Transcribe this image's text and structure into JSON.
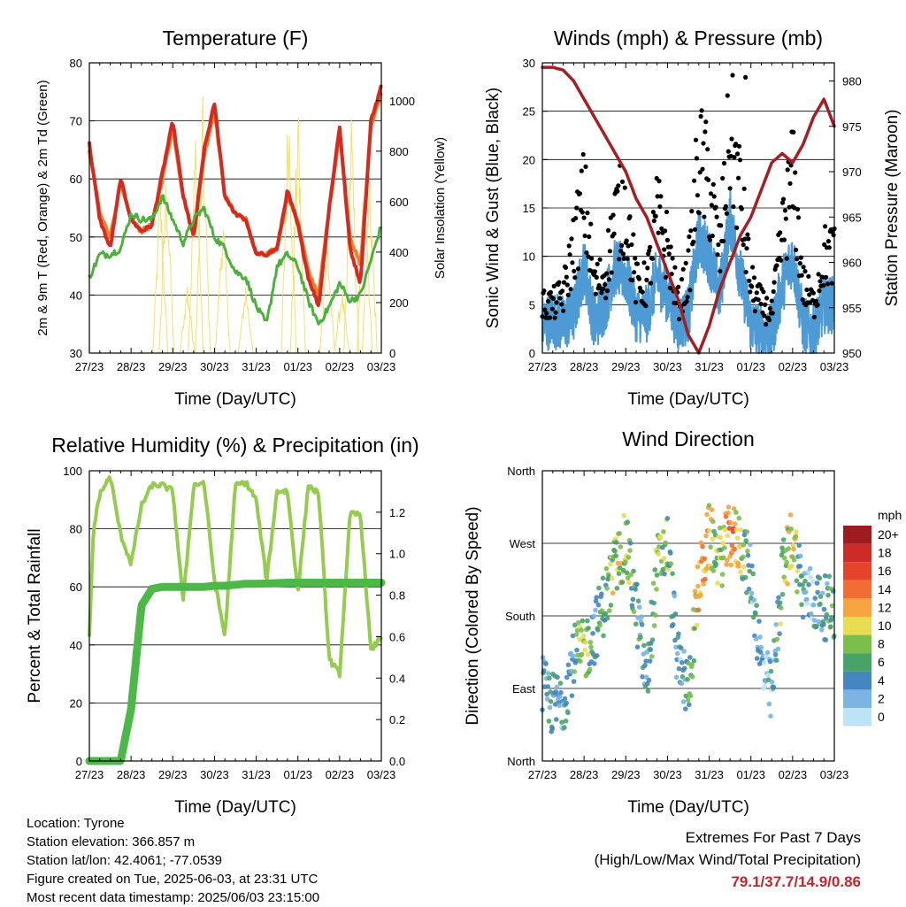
{
  "x_ticks": [
    "27/23",
    "28/23",
    "29/23",
    "30/23",
    "31/23",
    "01/23",
    "02/23",
    "03/23"
  ],
  "x_label": "Time (Day/UTC)",
  "colors": {
    "t2m": "#d42a20",
    "t9m": "#f07e2e",
    "td": "#4daf3c",
    "solar": "#f3e06a",
    "gust": "#000000",
    "wind": "#4d9ad4",
    "pressure": "#a31f24",
    "rh": "#95cc4f",
    "precip": "#4cb848",
    "grid": "#000000"
  },
  "info": {
    "location": "Location: Tyrone",
    "elevation": "Station elevation: 366.857 m",
    "latlon": "Station lat/lon: 42.4061; -77.0539",
    "created": "Figure created on Tue, 2025-06-03, at 23:31 UTC",
    "recent": "Most recent data timestamp: 2025/06/03 23:15:00"
  },
  "extremes": {
    "title": "Extremes For Past 7 Days",
    "subtitle": "(High/Low/Max Wind/Total Precipitation)",
    "values": "79.1/37.7/14.9/0.86"
  },
  "chart_data": [
    {
      "type": "line",
      "title": "Temperature (F)",
      "xlabel": "Time (Day/UTC)",
      "ylabel": "2m & 9m T (Red, Orange) & 2m Td (Green)",
      "ylabel_right": "Solar Insolation (Yellow)",
      "ylim": [
        30,
        80
      ],
      "y_ticks": [
        30,
        40,
        50,
        60,
        70,
        80
      ],
      "ylim_right": [
        0,
        1150
      ],
      "y_ticks_right": [
        0,
        200,
        400,
        600,
        800,
        1000
      ],
      "x": [
        0,
        0.25,
        0.5,
        0.75,
        1,
        1.25,
        1.5,
        1.75,
        2,
        2.25,
        2.5,
        2.75,
        3,
        3.25,
        3.5,
        3.75,
        4,
        4.25,
        4.5,
        4.75,
        5,
        5.25,
        5.5,
        5.75,
        6,
        6.25,
        6.5,
        6.75,
        7
      ],
      "series": [
        {
          "name": "2m T",
          "axis": "left",
          "values": [
            66,
            53,
            48,
            60,
            53,
            51,
            52,
            61,
            70,
            57,
            50,
            65,
            73,
            57,
            54,
            53,
            47,
            47,
            48,
            58,
            52,
            43,
            38,
            55,
            69,
            48,
            42,
            70,
            76
          ]
        },
        {
          "name": "9m T",
          "axis": "left",
          "values": [
            65,
            54,
            50,
            59,
            53,
            51,
            52,
            60,
            69,
            57,
            50,
            64,
            72,
            57,
            54,
            53,
            47,
            47,
            48,
            57,
            53,
            44,
            40,
            55,
            68,
            50,
            45,
            69,
            75
          ]
        },
        {
          "name": "2m Td",
          "axis": "left",
          "values": [
            43,
            47,
            47,
            48,
            54,
            53,
            53,
            57,
            53,
            49,
            53,
            55,
            50,
            48,
            44,
            43,
            38,
            35,
            45,
            47,
            45,
            39,
            35,
            38,
            42,
            39,
            40,
            46,
            52
          ]
        },
        {
          "name": "Solar Insolation",
          "axis": "right",
          "peaks_x": [
            1.7,
            1.85,
            2.35,
            2.55,
            2.72,
            3.2,
            3.75,
            4.78,
            5.0,
            5.7,
            6.05,
            6.28,
            6.6,
            6.72
          ],
          "peaks": [
            720,
            800,
            300,
            960,
            1020,
            610,
            300,
            1130,
            1050,
            510,
            280,
            1000,
            830,
            800
          ]
        }
      ]
    },
    {
      "type": "scatter",
      "title": "Winds (mph) & Pressure (mb)",
      "xlabel": "Time (Day/UTC)",
      "ylabel": "Sonic Wind & Gust (Blue, Black)",
      "ylabel_right": "Station Pressure (Maroon)",
      "ylim": [
        0,
        30
      ],
      "y_ticks": [
        0,
        5,
        10,
        15,
        20,
        25,
        30
      ],
      "ylim_right": [
        950,
        982
      ],
      "y_ticks_right": [
        950,
        955,
        960,
        965,
        970,
        975,
        980
      ],
      "x": [
        0,
        0.25,
        0.5,
        0.75,
        1,
        1.25,
        1.5,
        1.75,
        2,
        2.25,
        2.5,
        2.75,
        3,
        3.25,
        3.5,
        3.75,
        4,
        4.25,
        4.5,
        4.75,
        5,
        5.25,
        5.5,
        5.75,
        6,
        6.25,
        6.5,
        6.75,
        7
      ],
      "series": [
        {
          "name": "Wind",
          "values": [
            3,
            3.5,
            3,
            4,
            9,
            3,
            5,
            9,
            8,
            4,
            4,
            8,
            6,
            3,
            4,
            12,
            10,
            6,
            14,
            8,
            3,
            2,
            2,
            7,
            10,
            3,
            2,
            5,
            5
          ]
        },
        {
          "name": "Gust",
          "values": [
            5,
            5,
            6,
            11,
            16,
            7,
            8,
            14,
            15,
            7,
            7,
            14,
            11,
            5,
            8,
            20,
            17,
            10,
            23,
            16,
            7,
            5,
            4,
            12,
            18,
            7,
            5,
            10,
            10
          ]
        },
        {
          "name": "Pressure",
          "values": [
            981.5,
            981.5,
            981.2,
            980,
            978,
            976,
            974,
            972,
            970,
            967,
            965,
            962,
            959,
            956,
            952,
            950,
            953,
            957,
            960,
            963,
            965,
            968,
            971,
            972,
            971,
            973,
            976,
            978,
            975
          ]
        }
      ],
      "outlier": {
        "x": 4.87,
        "y": 28.5
      }
    },
    {
      "type": "line",
      "title": "Relative Humidity (%) & Precipitation (in)",
      "xlabel": "Time (Day/UTC)",
      "ylabel": "Percent & Total Rainfall",
      "ylim": [
        0,
        100
      ],
      "y_ticks": [
        0,
        20,
        40,
        60,
        80,
        100
      ],
      "ylim_right": [
        0,
        1.4
      ],
      "y_ticks_right": [
        "0.0",
        "0.2",
        "0.4",
        "0.6",
        "0.8",
        "1.0",
        "1.2"
      ],
      "x": [
        0,
        0.1,
        0.25,
        0.5,
        0.75,
        1,
        1.25,
        1.5,
        1.75,
        2,
        2.25,
        2.5,
        2.75,
        3,
        3.25,
        3.5,
        3.75,
        4,
        4.25,
        4.5,
        4.75,
        5,
        5.25,
        5.5,
        5.75,
        6,
        6.25,
        6.5,
        6.75,
        7
      ],
      "series": [
        {
          "name": "RH",
          "values": [
            43,
            80,
            92,
            98,
            78,
            68,
            88,
            95,
            95,
            93,
            55,
            95,
            96,
            62,
            43,
            95,
            96,
            90,
            62,
            93,
            93,
            58,
            95,
            92,
            35,
            30,
            85,
            85,
            38,
            43
          ]
        },
        {
          "name": "Precip",
          "values": [
            0,
            0,
            0,
            0,
            0,
            0.25,
            0.75,
            0.83,
            0.84,
            0.84,
            0.84,
            0.84,
            0.84,
            0.845,
            0.845,
            0.85,
            0.855,
            0.855,
            0.856,
            0.858,
            0.86,
            0.86,
            0.86,
            0.86,
            0.86,
            0.86,
            0.86,
            0.86,
            0.86,
            0.86
          ]
        }
      ]
    },
    {
      "type": "scatter",
      "title": "Wind Direction",
      "xlabel": "Time (Day/UTC)",
      "ylabel": "Direction (Colored By Speed)",
      "y_ticks": [
        "North",
        "East",
        "South",
        "West",
        "North"
      ],
      "ylim": [
        0,
        360
      ],
      "x": [
        0,
        0.25,
        0.5,
        0.75,
        1,
        1.25,
        1.5,
        1.75,
        2,
        2.25,
        2.5,
        2.75,
        3,
        3.25,
        3.5,
        3.75,
        4,
        4.25,
        4.5,
        4.75,
        5,
        5.25,
        5.5,
        5.75,
        6,
        6.25,
        6.5,
        6.75,
        7
      ],
      "series": [
        {
          "name": "Direction",
          "values": [
            90,
            70,
            75,
            130,
            135,
            160,
            200,
            240,
            270,
            190,
            95,
            240,
            270,
            120,
            90,
            220,
            280,
            250,
            280,
            270,
            230,
            120,
            80,
            230,
            280,
            210,
            200,
            190,
            190
          ]
        }
      ],
      "legend": {
        "title": "mph",
        "labels": [
          "20+",
          "18",
          "16",
          "14",
          "12",
          "10",
          "8",
          "6",
          "4",
          "2",
          "0"
        ],
        "colors": [
          "#9e1b1e",
          "#cc2b27",
          "#e5432c",
          "#f26d33",
          "#f7a33f",
          "#e9dc53",
          "#7bbe4b",
          "#47a466",
          "#4586c1",
          "#79b4e2",
          "#bde3f6"
        ]
      }
    }
  ]
}
